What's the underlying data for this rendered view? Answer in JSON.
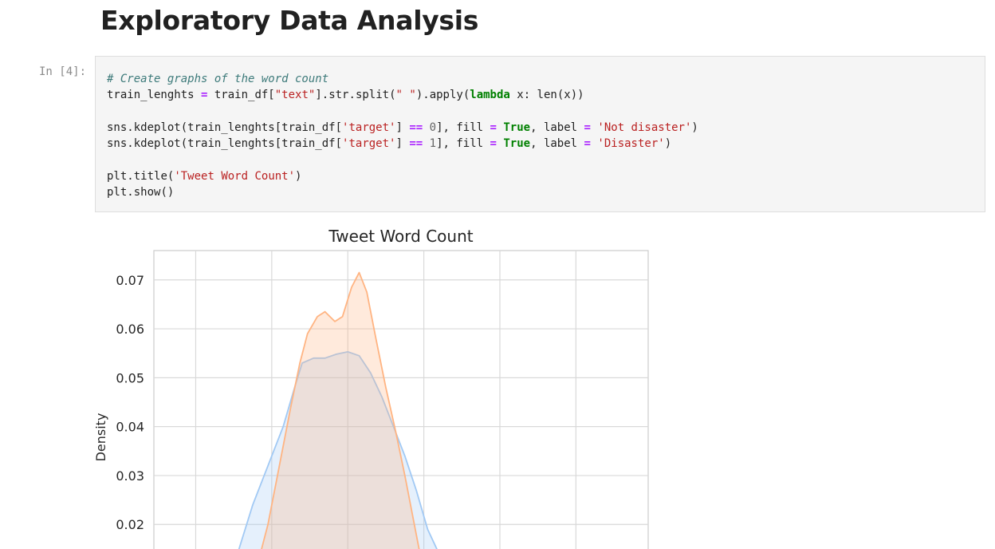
{
  "notebook": {
    "heading": "Exploratory Data Analysis",
    "cell_prompt": "In [4]:"
  },
  "code_lines": [
    [
      {
        "t": "# Create graphs of the word count",
        "c": "cm"
      }
    ],
    [
      {
        "t": "train_lenghts "
      },
      {
        "t": "=",
        "c": "op"
      },
      {
        "t": " train_df["
      },
      {
        "t": "\"text\"",
        "c": "st"
      },
      {
        "t": "]"
      },
      {
        "t": "."
      },
      {
        "t": "str"
      },
      {
        "t": "."
      },
      {
        "t": "split("
      },
      {
        "t": "\" \"",
        "c": "st"
      },
      {
        "t": ")"
      },
      {
        "t": "."
      },
      {
        "t": "apply("
      },
      {
        "t": "lambda",
        "c": "kw"
      },
      {
        "t": " x: len(x))"
      }
    ],
    [],
    [
      {
        "t": "sns"
      },
      {
        "t": "."
      },
      {
        "t": "kdeplot(train_lenghts[train_df["
      },
      {
        "t": "'target'",
        "c": "st"
      },
      {
        "t": "] "
      },
      {
        "t": "==",
        "c": "op"
      },
      {
        "t": " "
      },
      {
        "t": "0",
        "c": "nu"
      },
      {
        "t": "], fill "
      },
      {
        "t": "=",
        "c": "op"
      },
      {
        "t": " "
      },
      {
        "t": "True",
        "c": "kw"
      },
      {
        "t": ", label "
      },
      {
        "t": "=",
        "c": "op"
      },
      {
        "t": " "
      },
      {
        "t": "'Not disaster'",
        "c": "st"
      },
      {
        "t": ")"
      }
    ],
    [
      {
        "t": "sns"
      },
      {
        "t": "."
      },
      {
        "t": "kdeplot(train_lenghts[train_df["
      },
      {
        "t": "'target'",
        "c": "st"
      },
      {
        "t": "] "
      },
      {
        "t": "==",
        "c": "op"
      },
      {
        "t": " "
      },
      {
        "t": "1",
        "c": "nu"
      },
      {
        "t": "], fill "
      },
      {
        "t": "=",
        "c": "op"
      },
      {
        "t": " "
      },
      {
        "t": "True",
        "c": "kw"
      },
      {
        "t": ", label "
      },
      {
        "t": "=",
        "c": "op"
      },
      {
        "t": " "
      },
      {
        "t": "'Disaster'",
        "c": "st"
      },
      {
        "t": ")"
      }
    ],
    [],
    [
      {
        "t": "plt"
      },
      {
        "t": "."
      },
      {
        "t": "title("
      },
      {
        "t": "'Tweet Word Count'",
        "c": "st"
      },
      {
        "t": ")"
      }
    ],
    [
      {
        "t": "plt"
      },
      {
        "t": "."
      },
      {
        "t": "show()"
      }
    ]
  ],
  "chart_data": {
    "type": "area",
    "title": "Tweet Word Count",
    "ylabel": "Density",
    "y_visible_range": [
      0.014,
      0.076
    ],
    "yticks": [
      "0.07",
      "0.06",
      "0.05",
      "0.04",
      "0.03",
      "0.02"
    ],
    "ytick_values": [
      0.07,
      0.06,
      0.05,
      0.04,
      0.03,
      0.02
    ],
    "x_range": [
      -0.3,
      6.2
    ],
    "x_gridlines": [
      0.25,
      1.25,
      2.25,
      3.25,
      4.25,
      5.25
    ],
    "grid": true,
    "series": [
      {
        "color": "#a1c9f4",
        "points": [
          [
            0.8,
            0.014
          ],
          [
            1.0,
            0.024
          ],
          [
            1.2,
            0.032
          ],
          [
            1.4,
            0.04
          ],
          [
            1.55,
            0.048
          ],
          [
            1.65,
            0.053
          ],
          [
            1.8,
            0.054
          ],
          [
            1.95,
            0.054
          ],
          [
            2.1,
            0.0548
          ],
          [
            2.25,
            0.0553
          ],
          [
            2.4,
            0.0545
          ],
          [
            2.55,
            0.051
          ],
          [
            2.7,
            0.046
          ],
          [
            2.85,
            0.04
          ],
          [
            3.0,
            0.034
          ],
          [
            3.15,
            0.027
          ],
          [
            3.3,
            0.019
          ],
          [
            3.45,
            0.014
          ]
        ]
      },
      {
        "color": "#ffb482",
        "points": [
          [
            1.1,
            0.014
          ],
          [
            1.2,
            0.02
          ],
          [
            1.35,
            0.032
          ],
          [
            1.5,
            0.044
          ],
          [
            1.62,
            0.053
          ],
          [
            1.72,
            0.059
          ],
          [
            1.85,
            0.0625
          ],
          [
            1.95,
            0.0635
          ],
          [
            2.08,
            0.0615
          ],
          [
            2.18,
            0.0625
          ],
          [
            2.3,
            0.0685
          ],
          [
            2.4,
            0.0715
          ],
          [
            2.5,
            0.0675
          ],
          [
            2.62,
            0.058
          ],
          [
            2.75,
            0.048
          ],
          [
            2.88,
            0.039
          ],
          [
            3.0,
            0.03
          ],
          [
            3.1,
            0.022
          ],
          [
            3.2,
            0.014
          ]
        ]
      }
    ]
  }
}
